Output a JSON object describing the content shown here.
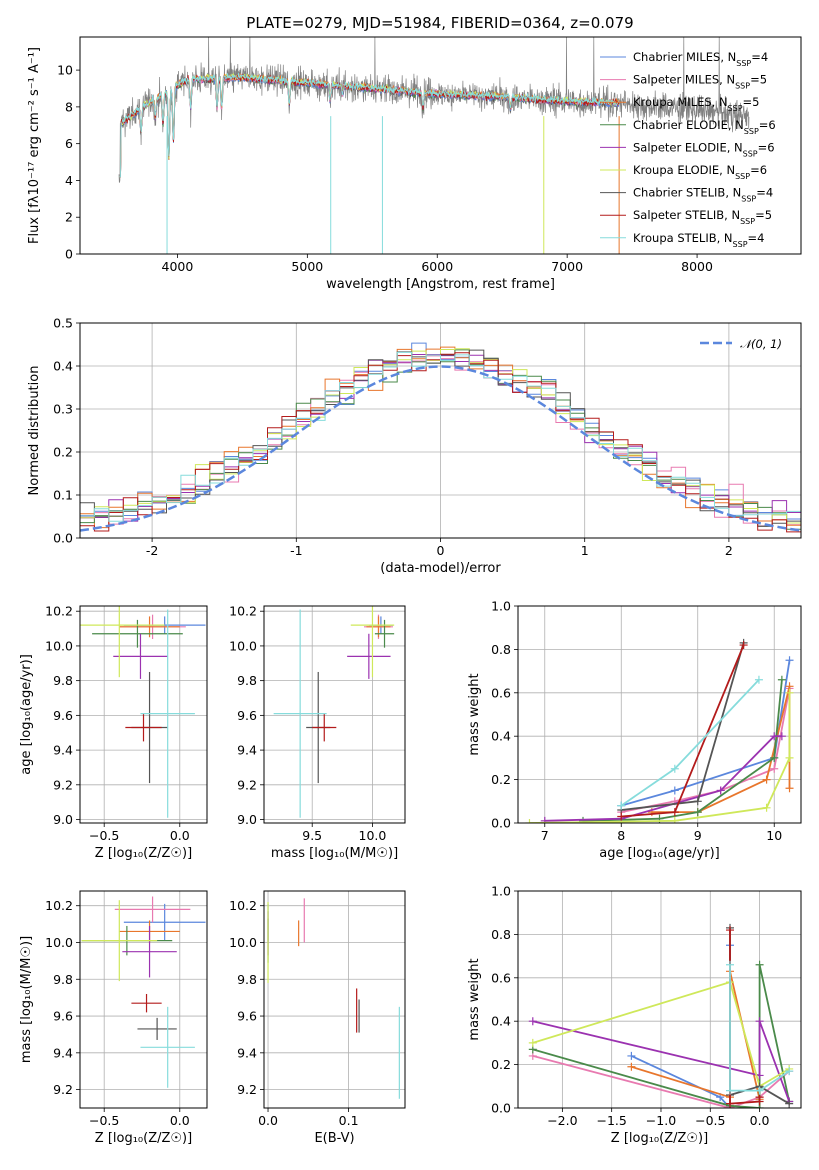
{
  "page_title": "PLATE=0279, MJD=51984, FIBERID=0364, z=0.079",
  "colors": {
    "Chabrier MILES": "#5b87dd",
    "Salpeter MILES": "#e87ab0",
    "Kroupa MILES": "#e8762c",
    "Chabrier ELODIE": "#4a8a4a",
    "Salpeter ELODIE": "#9b32b0",
    "Kroupa ELODIE": "#cfe85a",
    "Chabrier STELIB": "#555555",
    "Salpeter STELIB": "#b31b1b",
    "Kroupa STELIB": "#86dcdc",
    "data": "#808080",
    "gaussian": "#5b87dd"
  },
  "chart_data": [
    {
      "type": "line",
      "title": "PLATE=0279, MJD=51984, FIBERID=0364, z=0.079",
      "xlabel": "wavelength [Angstrom, rest frame]",
      "ylabel": "Flux [fλ10⁻¹⁷ erg cm⁻² s⁻¹ A⁻¹]",
      "xlim": [
        3250,
        8800
      ],
      "ylim": [
        0,
        11.8
      ],
      "xticks": [
        4000,
        5000,
        6000,
        7000,
        8000
      ],
      "yticks": [
        0,
        2,
        4,
        6,
        8,
        10
      ],
      "legend_position": "top-right",
      "legend": [
        "Chabrier MILES, N_SSP=4",
        "Salpeter MILES, N_SSP=5",
        "Kroupa MILES, N_SSP=5",
        "Chabrier ELODIE, N_SSP=6",
        "Salpeter ELODIE, N_SSP=6",
        "Kroupa ELODIE, N_SSP=6",
        "Chabrier STELIB, N_SSP=4",
        "Salpeter STELIB, N_SSP=5",
        "Kroupa STELIB, N_SSP=4"
      ],
      "model_range": [
        3550,
        7400
      ],
      "data_range": [
        3550,
        8400
      ],
      "continuum": [
        [
          3550,
          7.0
        ],
        [
          3750,
          8.1
        ],
        [
          3900,
          8.7
        ],
        [
          4000,
          9.2
        ],
        [
          4100,
          9.5
        ],
        [
          4500,
          9.6
        ],
        [
          5000,
          9.3
        ],
        [
          5500,
          9.0
        ],
        [
          6000,
          8.7
        ],
        [
          6500,
          8.55
        ],
        [
          7000,
          8.3
        ],
        [
          7400,
          8.2
        ],
        [
          8000,
          7.8
        ],
        [
          8400,
          7.5
        ]
      ],
      "absorption_lines": [
        [
          3720,
          1.2
        ],
        [
          3830,
          1.0
        ],
        [
          3889,
          1.5
        ],
        [
          3934,
          3.5
        ],
        [
          3969,
          2.8
        ],
        [
          4102,
          1.5
        ],
        [
          4305,
          1.5
        ],
        [
          4340,
          1.5
        ],
        [
          4861,
          1.2
        ],
        [
          5175,
          0.8
        ],
        [
          5270,
          0.4
        ],
        [
          5890,
          0.8
        ],
        [
          6563,
          0.6
        ]
      ],
      "annotation": "Kroupa MILES, N_SSP=5"
    },
    {
      "type": "line",
      "xlabel": "(data-model)/error",
      "ylabel": "Normed distribution",
      "xlim": [
        -2.5,
        2.5
      ],
      "ylim": [
        0,
        0.5
      ],
      "xticks": [
        -2,
        -1,
        0,
        1,
        2
      ],
      "yticks": [
        0.0,
        0.1,
        0.2,
        0.3,
        0.4,
        0.5
      ],
      "legend": [
        "𝒩(0, 1)"
      ],
      "legend_position": "top-right",
      "histogram_bin_width": 0.1
    },
    {
      "type": "scatter",
      "xlabel": "Z [log₁₀(Z/Z☉)]",
      "ylabel": "age  [log₁₀(age/yr)]",
      "xlim": [
        -0.66,
        0.18
      ],
      "ylim": [
        8.98,
        10.23
      ],
      "xticks": [
        -0.5,
        0.0
      ],
      "yticks": [
        9.0,
        9.2,
        9.4,
        9.6,
        9.8,
        10.0,
        10.2
      ],
      "points": [
        {
          "model": "Chabrier MILES",
          "x": -0.1,
          "xerr": 0.27,
          "y": 10.12,
          "yerr": 0.05
        },
        {
          "model": "Salpeter MILES",
          "x": -0.18,
          "xerr": 0.22,
          "y": 10.11,
          "yerr": 0.07
        },
        {
          "model": "Kroupa MILES",
          "x": -0.2,
          "xerr": 0.2,
          "y": 10.11,
          "yerr": 0.06
        },
        {
          "model": "Chabrier ELODIE",
          "x": -0.28,
          "xerr": 0.3,
          "y": 10.07,
          "yerr": 0.08
        },
        {
          "model": "Salpeter ELODIE",
          "x": -0.26,
          "xerr": 0.18,
          "y": 9.94,
          "yerr": 0.13
        },
        {
          "model": "Kroupa ELODIE",
          "x": -0.4,
          "xerr": 0.3,
          "y": 10.12,
          "yerr": 0.3
        },
        {
          "model": "Chabrier STELIB",
          "x": -0.2,
          "xerr": 0.12,
          "y": 9.53,
          "yerr": 0.32
        },
        {
          "model": "Salpeter STELIB",
          "x": -0.24,
          "xerr": 0.12,
          "y": 9.53,
          "yerr": 0.08
        },
        {
          "model": "Kroupa STELIB",
          "x": -0.08,
          "xerr": 0.18,
          "y": 9.61,
          "yerr": 0.6
        }
      ]
    },
    {
      "type": "scatter",
      "xlabel": "mass [log₁₀(M/M☉)]",
      "ylabel": "",
      "xlim": [
        9.1,
        10.27
      ],
      "ylim": [
        8.98,
        10.23
      ],
      "xticks": [
        9.5,
        10.0
      ],
      "yticks": [
        9.0,
        9.2,
        9.4,
        9.6,
        9.8,
        10.0,
        10.2
      ],
      "points": [
        {
          "model": "Chabrier MILES",
          "x": 10.07,
          "xerr": 0.1,
          "y": 10.12,
          "yerr": 0.05
        },
        {
          "model": "Salpeter MILES",
          "x": 10.05,
          "xerr": 0.12,
          "y": 10.11,
          "yerr": 0.07
        },
        {
          "model": "Kroupa MILES",
          "x": 10.05,
          "xerr": 0.1,
          "y": 10.11,
          "yerr": 0.06
        },
        {
          "model": "Chabrier ELODIE",
          "x": 10.1,
          "xerr": 0.08,
          "y": 10.07,
          "yerr": 0.08
        },
        {
          "model": "Salpeter ELODIE",
          "x": 9.97,
          "xerr": 0.18,
          "y": 9.94,
          "yerr": 0.13
        },
        {
          "model": "Kroupa ELODIE",
          "x": 10.0,
          "xerr": 0.18,
          "y": 10.12,
          "yerr": 0.3
        },
        {
          "model": "Chabrier STELIB",
          "x": 9.55,
          "xerr": 0.1,
          "y": 9.53,
          "yerr": 0.32
        },
        {
          "model": "Salpeter STELIB",
          "x": 9.6,
          "xerr": 0.1,
          "y": 9.53,
          "yerr": 0.08
        },
        {
          "model": "Kroupa STELIB",
          "x": 9.4,
          "xerr": 0.22,
          "y": 9.61,
          "yerr": 0.6
        }
      ]
    },
    {
      "type": "line",
      "xlabel": "age  [log₁₀(age/yr)]",
      "ylabel": "mass weight",
      "xlim": [
        6.65,
        10.35
      ],
      "ylim": [
        0,
        1.0
      ],
      "xticks": [
        7,
        8,
        9,
        10
      ],
      "yticks": [
        0.0,
        0.2,
        0.4,
        0.6,
        0.8,
        1.0
      ],
      "series": [
        {
          "model": "Chabrier MILES",
          "x": [
            8.0,
            8.7,
            10.0,
            10.2
          ],
          "y": [
            0.08,
            0.15,
            0.3,
            0.75
          ]
        },
        {
          "model": "Salpeter MILES",
          "x": [
            8.0,
            8.7,
            9.3,
            10.0,
            10.2
          ],
          "y": [
            0.05,
            0.1,
            0.15,
            0.25,
            0.62
          ]
        },
        {
          "model": "Kroupa MILES",
          "x": [
            8.4,
            9.0,
            9.9,
            10.2,
            10.2
          ],
          "y": [
            0.05,
            0.05,
            0.2,
            0.63,
            0.16
          ]
        },
        {
          "model": "Chabrier ELODIE",
          "x": [
            7.5,
            8.5,
            9.0,
            10.0,
            10.1
          ],
          "y": [
            0.01,
            0.02,
            0.05,
            0.3,
            0.66
          ]
        },
        {
          "model": "Salpeter ELODIE",
          "x": [
            7.0,
            8.0,
            9.3,
            10.0,
            10.1
          ],
          "y": [
            0.01,
            0.02,
            0.15,
            0.4,
            0.4
          ]
        },
        {
          "model": "Kroupa ELODIE",
          "x": [
            6.8,
            8.7,
            9.9,
            10.2,
            10.2
          ],
          "y": [
            0.0,
            0.01,
            0.07,
            0.3,
            0.6
          ]
        },
        {
          "model": "Chabrier STELIB",
          "x": [
            8.0,
            9.0,
            9.6
          ],
          "y": [
            0.06,
            0.1,
            0.83
          ]
        },
        {
          "model": "Salpeter STELIB",
          "x": [
            8.0,
            8.7,
            9.6
          ],
          "y": [
            0.03,
            0.05,
            0.82
          ]
        },
        {
          "model": "Kroupa STELIB",
          "x": [
            8.0,
            8.7,
            9.8
          ],
          "y": [
            0.08,
            0.25,
            0.66
          ]
        }
      ]
    },
    {
      "type": "scatter",
      "xlabel": "Z [log₁₀(Z/Z☉)]",
      "ylabel": "mass [log₁₀(M/M☉)]",
      "xlim": [
        -0.66,
        0.18
      ],
      "ylim": [
        9.1,
        10.28
      ],
      "xticks": [
        -0.5,
        0.0
      ],
      "yticks": [
        9.2,
        9.4,
        9.6,
        9.8,
        10.0,
        10.2
      ],
      "points": [
        {
          "model": "Chabrier MILES",
          "x": -0.1,
          "xerr": 0.27,
          "y": 10.11,
          "yerr": 0.1
        },
        {
          "model": "Salpeter MILES",
          "x": -0.18,
          "xerr": 0.25,
          "y": 10.18,
          "yerr": 0.07
        },
        {
          "model": "Kroupa MILES",
          "x": -0.2,
          "xerr": 0.2,
          "y": 10.06,
          "yerr": 0.06
        },
        {
          "model": "Chabrier ELODIE",
          "x": -0.35,
          "xerr": 0.3,
          "y": 10.01,
          "yerr": 0.08
        },
        {
          "model": "Salpeter ELODIE",
          "x": -0.2,
          "xerr": 0.18,
          "y": 9.95,
          "yerr": 0.14
        },
        {
          "model": "Kroupa ELODIE",
          "x": -0.4,
          "xerr": 0.25,
          "y": 10.01,
          "yerr": 0.22
        },
        {
          "model": "Chabrier STELIB",
          "x": -0.15,
          "xerr": 0.13,
          "y": 9.53,
          "yerr": 0.06
        },
        {
          "model": "Salpeter STELIB",
          "x": -0.22,
          "xerr": 0.1,
          "y": 9.67,
          "yerr": 0.05
        },
        {
          "model": "Kroupa STELIB",
          "x": -0.08,
          "xerr": 0.18,
          "y": 9.43,
          "yerr": 0.22
        }
      ]
    },
    {
      "type": "scatter",
      "xlabel": "E(B-V)",
      "ylabel": "",
      "xlim": [
        -0.005,
        0.17
      ],
      "ylim": [
        9.1,
        10.28
      ],
      "xticks": [
        0.0,
        0.1
      ],
      "yticks": [
        9.2,
        9.4,
        9.6,
        9.8,
        10.0,
        10.2
      ],
      "points": [
        {
          "model": "Chabrier MILES",
          "x": 0.0,
          "y": 10.11,
          "yerr": 0.1
        },
        {
          "model": "Salpeter MILES",
          "x": 0.045,
          "y": 10.12,
          "yerr": 0.12
        },
        {
          "model": "Kroupa MILES",
          "x": 0.038,
          "y": 10.05,
          "yerr": 0.07
        },
        {
          "model": "Chabrier ELODIE",
          "x": 0.0,
          "y": 10.01,
          "yerr": 0.12
        },
        {
          "model": "Salpeter ELODIE",
          "x": 0.0,
          "y": 10.05,
          "yerr": 0.12
        },
        {
          "model": "Kroupa ELODIE",
          "x": 0.0,
          "y": 10.0,
          "yerr": 0.22
        },
        {
          "model": "Chabrier STELIB",
          "x": 0.113,
          "y": 9.6,
          "yerr": 0.09
        },
        {
          "model": "Salpeter STELIB",
          "x": 0.11,
          "y": 9.63,
          "yerr": 0.12
        },
        {
          "model": "Kroupa STELIB",
          "x": 0.163,
          "y": 9.4,
          "yerr": 0.25
        }
      ]
    },
    {
      "type": "line",
      "xlabel": "Z [log₁₀(Z/Z☉)]",
      "ylabel": "mass weight",
      "xlim": [
        -2.45,
        0.42
      ],
      "ylim": [
        0,
        1.0
      ],
      "xticks": [
        -2.0,
        -1.5,
        -1.0,
        -0.5,
        0.0
      ],
      "yticks": [
        0.0,
        0.2,
        0.4,
        0.6,
        0.8,
        1.0
      ],
      "series": [
        {
          "model": "Chabrier MILES",
          "x": [
            -1.3,
            -0.4,
            -0.3,
            -0.3
          ],
          "y": [
            0.24,
            0.05,
            0.0,
            0.75
          ]
        },
        {
          "model": "Salpeter MILES",
          "x": [
            -2.3,
            -0.3,
            0.0,
            0.3
          ],
          "y": [
            0.24,
            0.0,
            0.05,
            0.17
          ]
        },
        {
          "model": "Kroupa MILES",
          "x": [
            -1.3,
            -0.3,
            -0.3,
            0.0
          ],
          "y": [
            0.19,
            0.05,
            0.63,
            0.04
          ]
        },
        {
          "model": "Chabrier ELODIE",
          "x": [
            -2.3,
            -0.3,
            0.0,
            0.0,
            0.3
          ],
          "y": [
            0.27,
            0.01,
            0.0,
            0.66,
            0.03
          ]
        },
        {
          "model": "Salpeter ELODIE",
          "x": [
            -2.3,
            0.0,
            0.0,
            0.3
          ],
          "y": [
            0.4,
            0.15,
            0.4,
            0.03
          ]
        },
        {
          "model": "Kroupa ELODIE",
          "x": [
            -2.3,
            -0.3,
            0.0,
            0.3
          ],
          "y": [
            0.3,
            0.58,
            0.1,
            0.18
          ]
        },
        {
          "model": "Chabrier STELIB",
          "x": [
            -0.3,
            -0.3,
            0.0,
            0.3
          ],
          "y": [
            0.83,
            0.06,
            0.1,
            0.02
          ]
        },
        {
          "model": "Salpeter STELIB",
          "x": [
            -0.3,
            -0.3,
            0.0,
            0.0
          ],
          "y": [
            0.82,
            0.02,
            0.03,
            0.05
          ]
        },
        {
          "model": "Kroupa STELIB",
          "x": [
            -0.3,
            -0.3,
            0.0,
            0.3
          ],
          "y": [
            0.66,
            0.08,
            0.08,
            0.17
          ]
        }
      ]
    }
  ]
}
